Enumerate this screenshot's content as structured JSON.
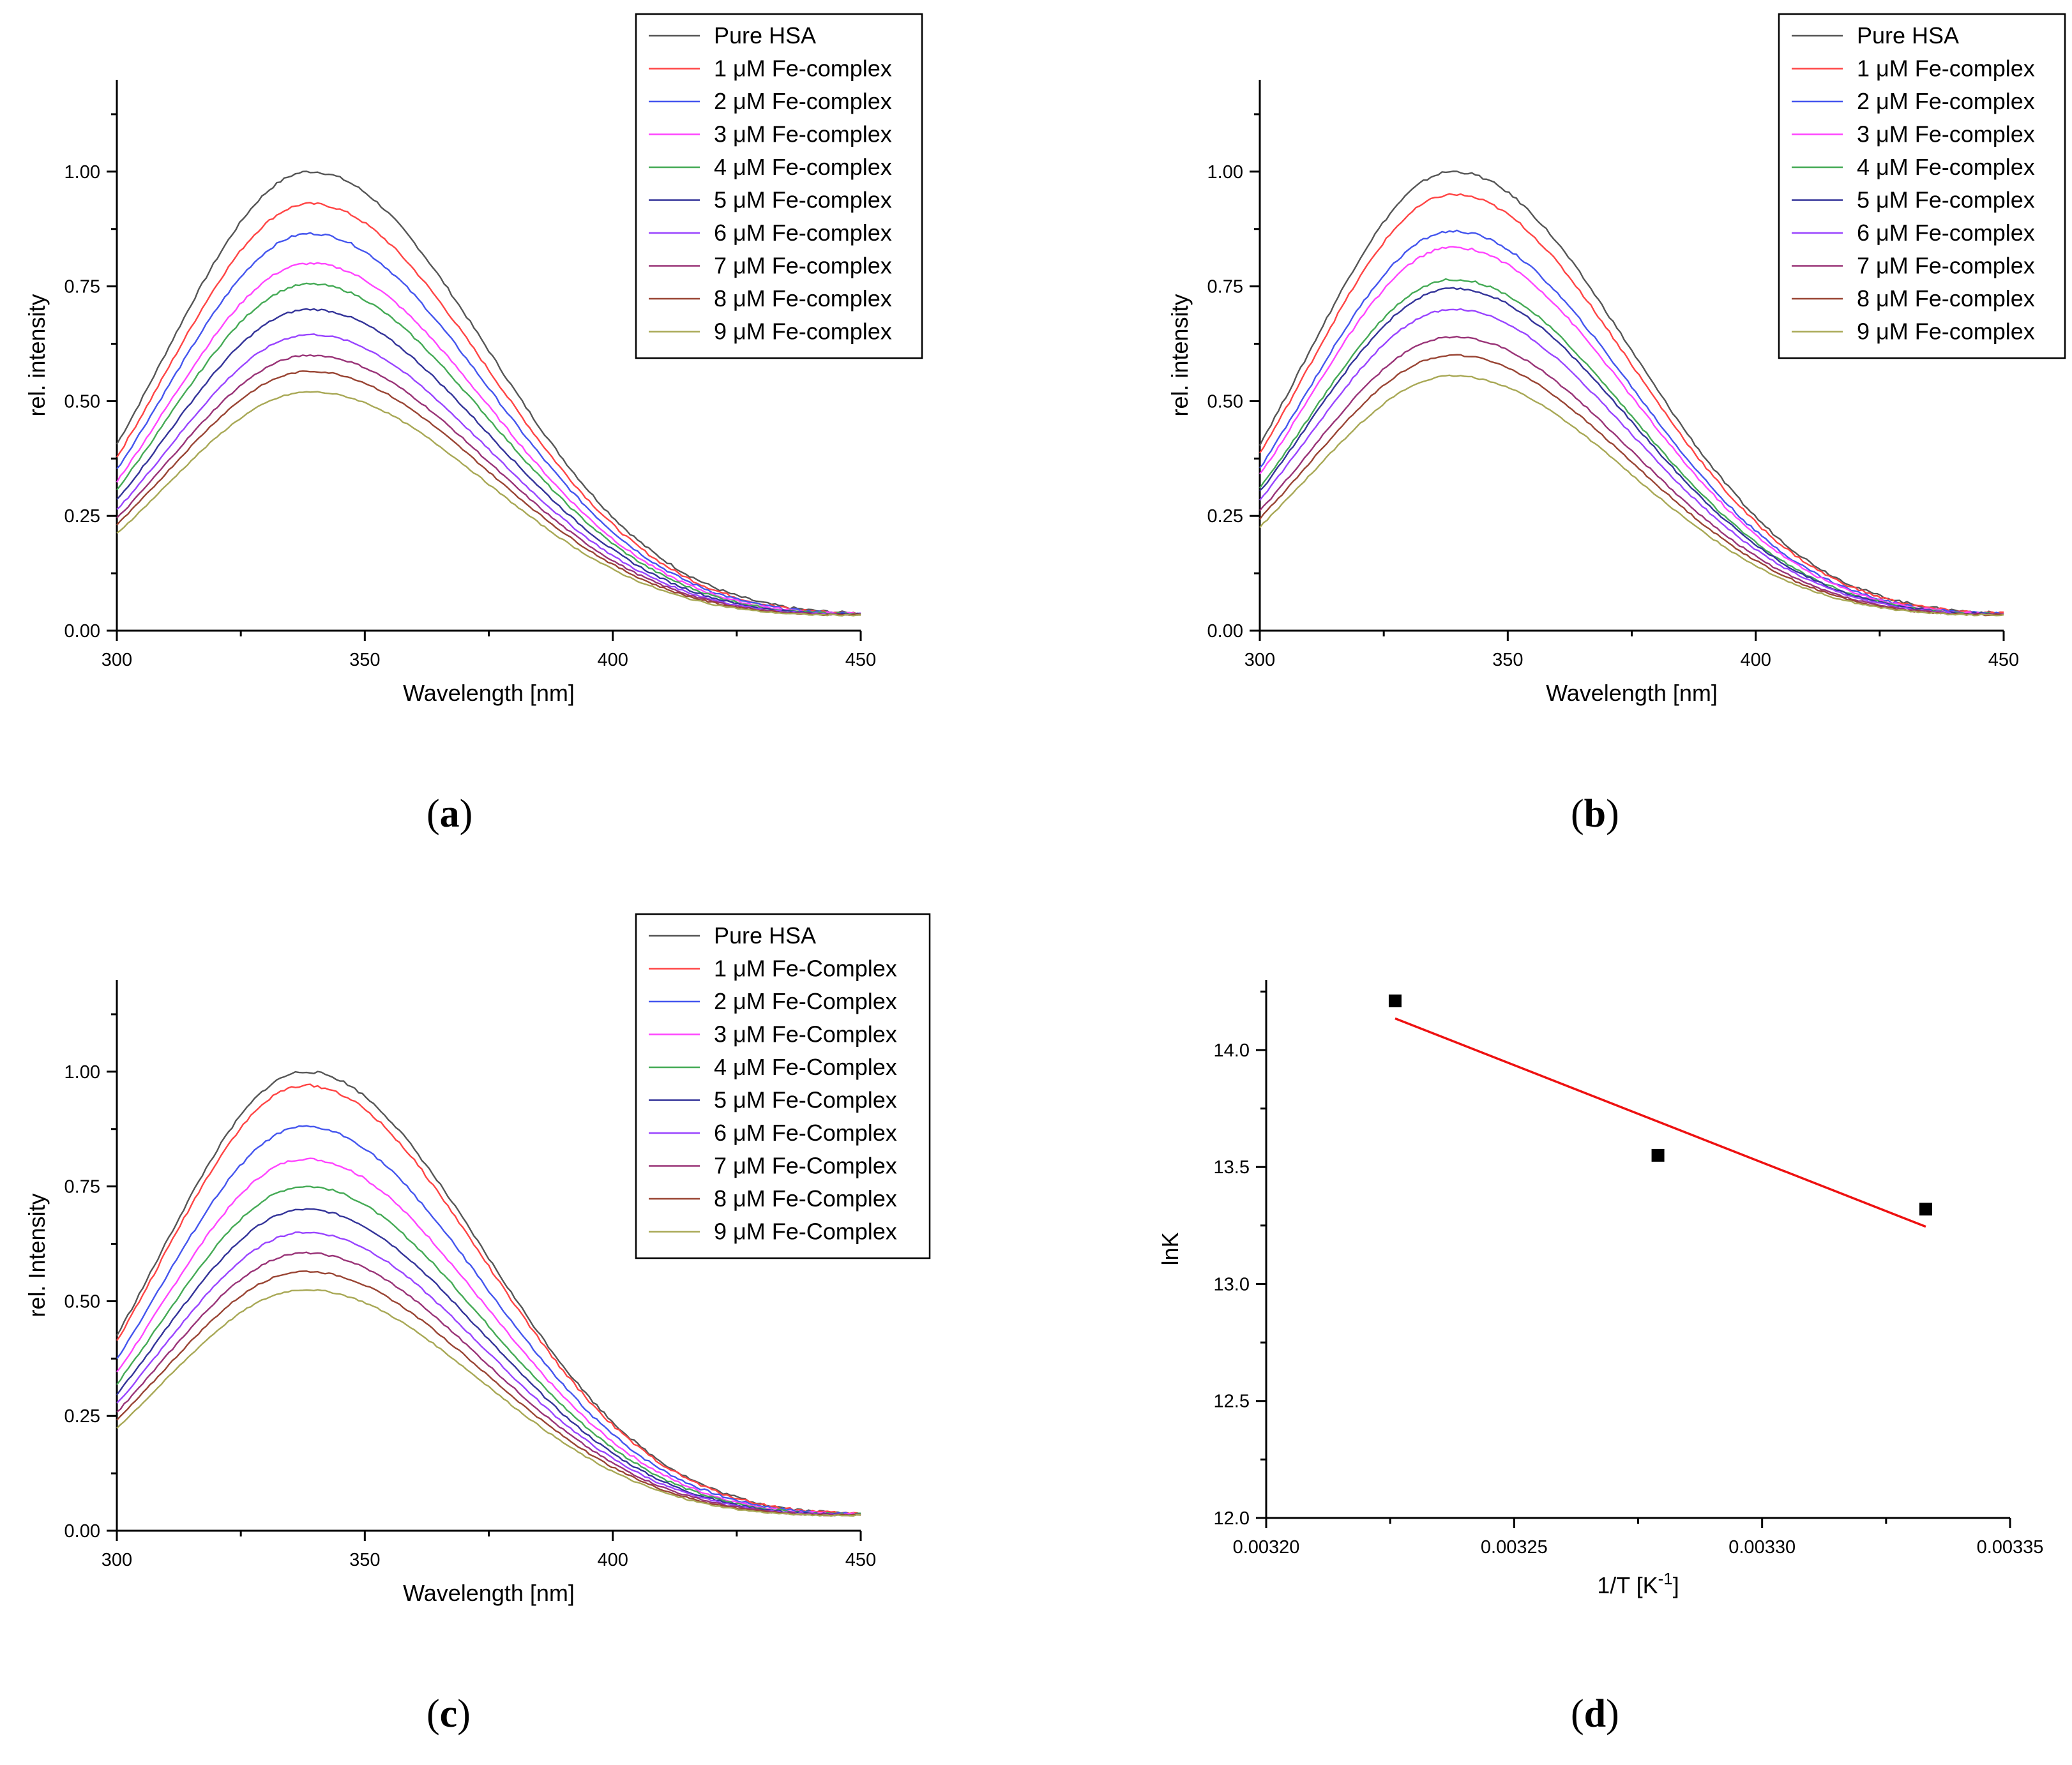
{
  "panels": [
    {
      "id": "a",
      "caption": "a",
      "chart_data": {
        "type": "line",
        "xlabel": "Wavelength [nm]",
        "ylabel": "rel. intensity",
        "xlim": [
          300,
          450
        ],
        "ylim": [
          0,
          1.2
        ],
        "xticks": [
          "300",
          "350",
          "400",
          "450"
        ],
        "yticks": [
          "0.00",
          "0.25",
          "0.50",
          "0.75",
          "1.00"
        ],
        "peak_x": 339,
        "legend_position": "top-right",
        "series": [
          {
            "name": "Pure HSA",
            "color": "#555555",
            "peak": 1.0
          },
          {
            "name": "1 μM Fe-complex",
            "color": "#ff4444",
            "peak": 0.93
          },
          {
            "name": "2 μM Fe-complex",
            "color": "#4455ee",
            "peak": 0.865
          },
          {
            "name": "3 μM Fe-complex",
            "color": "#ff44ff",
            "peak": 0.8
          },
          {
            "name": "4 μM Fe-complex",
            "color": "#44aa55",
            "peak": 0.755
          },
          {
            "name": "5 μM Fe-complex",
            "color": "#333399",
            "peak": 0.7
          },
          {
            "name": "6 μM Fe-complex",
            "color": "#9944ff",
            "peak": 0.645
          },
          {
            "name": "7 μM Fe-complex",
            "color": "#993377",
            "peak": 0.6
          },
          {
            "name": "8 μM Fe-complex",
            "color": "#994433",
            "peak": 0.565
          },
          {
            "name": "9 μM Fe-complex",
            "color": "#a8a855",
            "peak": 0.52
          }
        ]
      }
    },
    {
      "id": "b",
      "caption": "b",
      "chart_data": {
        "type": "line",
        "xlabel": "Wavelength [nm]",
        "ylabel": "rel. intensity",
        "xlim": [
          300,
          450
        ],
        "ylim": [
          0,
          1.2
        ],
        "xticks": [
          "300",
          "350",
          "400",
          "450"
        ],
        "yticks": [
          "0.00",
          "0.25",
          "0.50",
          "0.75",
          "1.00"
        ],
        "peak_x": 339,
        "legend_position": "top-right",
        "series": [
          {
            "name": "Pure HSA",
            "color": "#555555",
            "peak": 1.0
          },
          {
            "name": "1 μM Fe-complex",
            "color": "#ff4444",
            "peak": 0.95
          },
          {
            "name": "2 μM Fe-complex",
            "color": "#4455ee",
            "peak": 0.87
          },
          {
            "name": "3 μM Fe-complex",
            "color": "#ff44ff",
            "peak": 0.835
          },
          {
            "name": "4 μM Fe-complex",
            "color": "#44aa55",
            "peak": 0.765
          },
          {
            "name": "5 μM Fe-complex",
            "color": "#333399",
            "peak": 0.745
          },
          {
            "name": "6 μM Fe-complex",
            "color": "#9944ff",
            "peak": 0.7
          },
          {
            "name": "7 μM Fe-complex",
            "color": "#993377",
            "peak": 0.64
          },
          {
            "name": "8 μM Fe-complex",
            "color": "#994433",
            "peak": 0.6
          },
          {
            "name": "9 μM Fe-complex",
            "color": "#a8a855",
            "peak": 0.555
          }
        ]
      }
    },
    {
      "id": "c",
      "caption": "c",
      "chart_data": {
        "type": "line",
        "xlabel": "Wavelength [nm]",
        "ylabel": "rel. Intensity",
        "xlim": [
          300,
          450
        ],
        "ylim": [
          0,
          1.2
        ],
        "xticks": [
          "300",
          "350",
          "400",
          "450"
        ],
        "yticks": [
          "0.00",
          "0.25",
          "0.50",
          "0.75",
          "1.00"
        ],
        "peak_x": 338,
        "legend_position": "top-right",
        "series": [
          {
            "name": "Pure HSA",
            "color": "#555555",
            "peak": 1.0
          },
          {
            "name": "1 μM Fe-Complex",
            "color": "#ff4444",
            "peak": 0.97
          },
          {
            "name": "2 μM Fe-Complex",
            "color": "#4455ee",
            "peak": 0.88
          },
          {
            "name": "3 μM Fe-Complex",
            "color": "#ff44ff",
            "peak": 0.81
          },
          {
            "name": "4 μM Fe-Complex",
            "color": "#44aa55",
            "peak": 0.75
          },
          {
            "name": "5 μM Fe-Complex",
            "color": "#333399",
            "peak": 0.7
          },
          {
            "name": "6 μM Fe-Complex",
            "color": "#9944ff",
            "peak": 0.65
          },
          {
            "name": "7 μM Fe-Complex",
            "color": "#993377",
            "peak": 0.605
          },
          {
            "name": "8 μM Fe-Complex",
            "color": "#994433",
            "peak": 0.565
          },
          {
            "name": "9 μM Fe-Complex",
            "color": "#a8a855",
            "peak": 0.525
          }
        ]
      }
    },
    {
      "id": "d",
      "caption": "d",
      "chart_data": {
        "type": "scatter",
        "xlabel": "1/T [K",
        "xlabel_sup": "-1",
        "xlabel_end": "]",
        "ylabel": "lnK",
        "xlim": [
          0.0032,
          0.00335
        ],
        "ylim": [
          12.0,
          14.3
        ],
        "xticks": [
          "0.00320",
          "0.00325",
          "0.00330",
          "0.00335"
        ],
        "yticks": [
          "12.0",
          "12.5",
          "13.0",
          "13.5",
          "14.0"
        ],
        "points": [
          {
            "x": 0.003226,
            "y": 14.21
          },
          {
            "x": 0.003279,
            "y": 13.55
          },
          {
            "x": 0.003333,
            "y": 13.32
          }
        ],
        "fit_line": {
          "color": "#ee1111",
          "x": [
            0.003226,
            0.003333
          ],
          "y": [
            14.135,
            13.245
          ]
        },
        "marker_color": "#000000"
      }
    }
  ]
}
